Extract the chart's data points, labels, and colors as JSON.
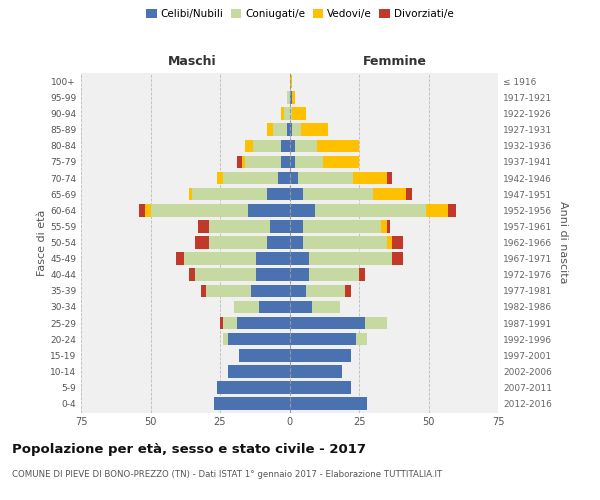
{
  "age_groups": [
    "0-4",
    "5-9",
    "10-14",
    "15-19",
    "20-24",
    "25-29",
    "30-34",
    "35-39",
    "40-44",
    "45-49",
    "50-54",
    "55-59",
    "60-64",
    "65-69",
    "70-74",
    "75-79",
    "80-84",
    "85-89",
    "90-94",
    "95-99",
    "100+"
  ],
  "birth_years": [
    "2012-2016",
    "2007-2011",
    "2002-2006",
    "1997-2001",
    "1992-1996",
    "1987-1991",
    "1982-1986",
    "1977-1981",
    "1972-1976",
    "1967-1971",
    "1962-1966",
    "1957-1961",
    "1952-1956",
    "1947-1951",
    "1942-1946",
    "1937-1941",
    "1932-1936",
    "1927-1931",
    "1922-1926",
    "1917-1921",
    "≤ 1916"
  ],
  "males": {
    "celibe": [
      27,
      26,
      22,
      18,
      22,
      19,
      11,
      14,
      12,
      12,
      8,
      7,
      15,
      8,
      4,
      3,
      3,
      1,
      0,
      0,
      0
    ],
    "coniugato": [
      0,
      0,
      0,
      0,
      2,
      5,
      9,
      16,
      22,
      26,
      21,
      22,
      35,
      27,
      20,
      13,
      10,
      5,
      2,
      1,
      0
    ],
    "vedovo": [
      0,
      0,
      0,
      0,
      0,
      0,
      0,
      0,
      0,
      0,
      0,
      0,
      2,
      1,
      2,
      1,
      3,
      2,
      1,
      0,
      0
    ],
    "divorziato": [
      0,
      0,
      0,
      0,
      0,
      1,
      0,
      2,
      2,
      3,
      5,
      4,
      2,
      0,
      0,
      2,
      0,
      0,
      0,
      0,
      0
    ]
  },
  "females": {
    "nubile": [
      28,
      22,
      19,
      22,
      24,
      27,
      8,
      6,
      7,
      7,
      5,
      5,
      9,
      5,
      3,
      2,
      2,
      1,
      0,
      1,
      0
    ],
    "coniugata": [
      0,
      0,
      0,
      0,
      4,
      8,
      10,
      14,
      18,
      30,
      30,
      28,
      40,
      25,
      20,
      10,
      8,
      3,
      1,
      0,
      0
    ],
    "vedova": [
      0,
      0,
      0,
      0,
      0,
      0,
      0,
      0,
      0,
      0,
      2,
      2,
      8,
      12,
      12,
      13,
      15,
      10,
      5,
      1,
      1
    ],
    "divorziata": [
      0,
      0,
      0,
      0,
      0,
      0,
      0,
      2,
      2,
      4,
      4,
      1,
      3,
      2,
      2,
      0,
      0,
      0,
      0,
      0,
      0
    ]
  },
  "colors": {
    "celibe": "#4a72b0",
    "coniugato": "#c6d9a0",
    "vedovo": "#ffc000",
    "divorziato": "#c0392b"
  },
  "xlim": 75,
  "title": "Popolazione per età, sesso e stato civile - 2017",
  "subtitle": "COMUNE DI PIEVE DI BONO-PREZZO (TN) - Dati ISTAT 1° gennaio 2017 - Elaborazione TUTTITALIA.IT",
  "ylabel_left": "Fasce di età",
  "ylabel_right": "Anni di nascita",
  "xlabel_left": "Maschi",
  "xlabel_right": "Femmine",
  "bg_color": "#f0f0f0",
  "grid_color": "#bbbbbb"
}
